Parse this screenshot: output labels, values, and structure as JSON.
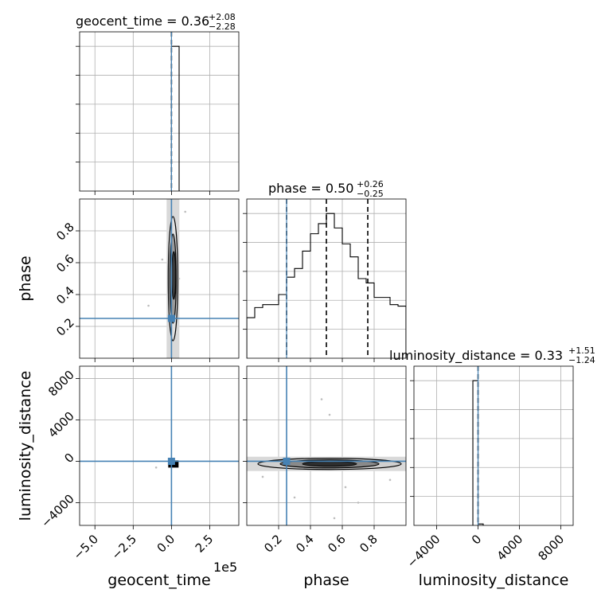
{
  "colors": {
    "truth": "#4682b4",
    "hist": "#000000",
    "grid": "#b0b0b0",
    "density": "#000000",
    "points": "#bdbdbd"
  },
  "chart_data": {
    "type": "corner",
    "titles": {
      "geocent_time": {
        "label": "geocent_time = 0.36",
        "sup": "+2.08",
        "sub": "−2.28"
      },
      "phase": {
        "label": "phase = 0.50",
        "sup": "+0.26",
        "sub": "−0.25"
      },
      "luminosity_distance": {
        "label": "luminosity_distance = 0.33",
        "sup": "+1.51",
        "sub": "−1.24"
      }
    },
    "axis_labels": {
      "geocent_time": "geocent_time",
      "phase": "phase",
      "luminosity_distance": "luminosity_distance"
    },
    "offset_text": "1e5",
    "ranges": {
      "geocent_time": [
        -6.0,
        4.4
      ],
      "phase": [
        0.0,
        1.0
      ],
      "luminosity_distance": [
        -6200,
        9200
      ]
    },
    "ticks": {
      "geocent_time": [
        "−5.0",
        "−2.5",
        "0.0",
        "2.5"
      ],
      "phase": [
        "0.2",
        "0.4",
        "0.6",
        "0.8"
      ],
      "luminosity_distance": [
        "−4000",
        "0",
        "4000",
        "8000"
      ]
    },
    "tick_values": {
      "geocent_time": [
        -5.0,
        -2.5,
        0.0,
        2.5
      ],
      "phase": [
        0.2,
        0.4,
        0.6,
        0.8
      ],
      "luminosity_distance": [
        -4000,
        0,
        4000,
        8000
      ]
    },
    "truths": {
      "geocent_time": 0.0,
      "phase": 0.25,
      "luminosity_distance": 0
    },
    "quantiles": {
      "geocent_time": [
        0.0
      ],
      "phase": [
        0.25,
        0.5,
        0.76
      ],
      "luminosity_distance": [
        0
      ]
    },
    "histograms": {
      "geocent_time": {
        "edges": [
          0.0,
          0.5
        ],
        "counts": [
          1.0
        ]
      },
      "phase": {
        "edges": [
          0.0,
          0.05,
          0.1,
          0.15,
          0.2,
          0.25,
          0.3,
          0.35,
          0.4,
          0.45,
          0.5,
          0.55,
          0.6,
          0.65,
          0.7,
          0.75,
          0.8,
          0.85,
          0.9,
          0.95,
          1.0
        ],
        "counts": [
          0.28,
          0.35,
          0.37,
          0.37,
          0.44,
          0.56,
          0.62,
          0.74,
          0.86,
          0.93,
          1.0,
          0.9,
          0.79,
          0.7,
          0.55,
          0.52,
          0.42,
          0.42,
          0.37,
          0.36
        ]
      },
      "luminosity_distance": {
        "edges": [
          -500,
          0,
          500
        ],
        "counts": [
          1.0,
          0.01
        ]
      }
    },
    "scatter": {
      "phase_vs_geocent_time": {
        "x": [
          0.05,
          -0.05,
          -0.6,
          -1.5,
          0.5,
          0.9,
          0.2
        ],
        "y": [
          0.9,
          0.15,
          0.62,
          0.33,
          0.5,
          0.92,
          0.3
        ]
      },
      "luminosity_distance_vs_phase": {
        "x": [
          0.47,
          0.52,
          0.1,
          0.9,
          0.3,
          0.7,
          0.62,
          0.55
        ],
        "y": [
          6000,
          4500,
          -1500,
          -1800,
          -3500,
          -4000,
          -2500,
          -5500
        ]
      },
      "luminosity_distance_vs_geocent_time": {
        "x": [
          -1.0,
          0.2
        ],
        "y": [
          -600,
          -300
        ]
      }
    },
    "grid": true
  }
}
